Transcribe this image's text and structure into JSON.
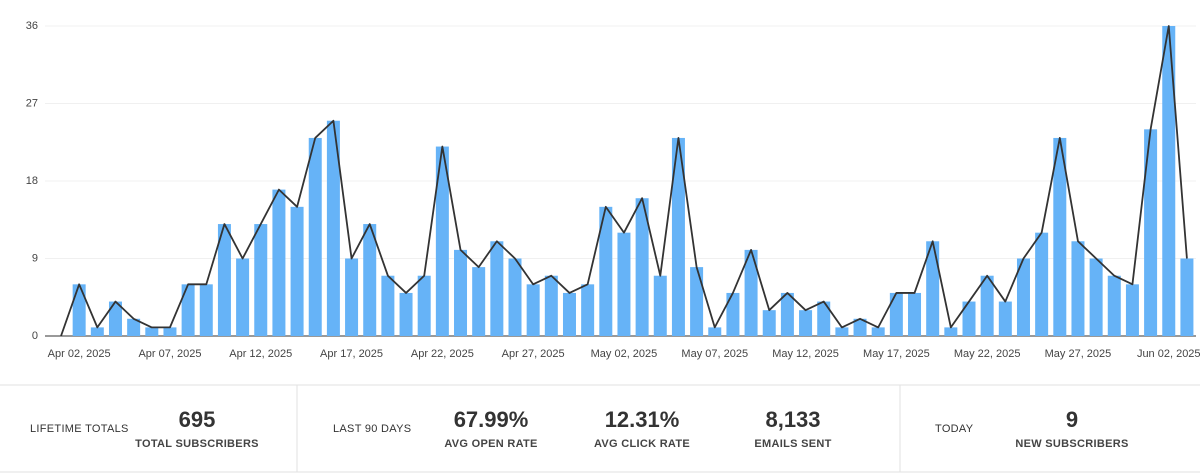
{
  "chart_data": {
    "type": "bar",
    "categories": [
      null,
      "Apr 02, 2025",
      null,
      null,
      null,
      null,
      "Apr 07, 2025",
      null,
      null,
      null,
      null,
      "Apr 12, 2025",
      null,
      null,
      null,
      null,
      "Apr 17, 2025",
      null,
      null,
      null,
      null,
      "Apr 22, 2025",
      null,
      null,
      null,
      null,
      "Apr 27, 2025",
      null,
      null,
      null,
      null,
      "May 02, 2025",
      null,
      null,
      null,
      null,
      "May 07, 2025",
      null,
      null,
      null,
      null,
      "May 12, 2025",
      null,
      null,
      null,
      null,
      "May 17, 2025",
      null,
      null,
      null,
      null,
      "May 22, 2025",
      null,
      null,
      null,
      null,
      "May 27, 2025",
      null,
      null,
      null,
      null,
      "Jun 02, 2025",
      null
    ],
    "values": [
      0,
      6,
      1,
      4,
      2,
      1,
      1,
      6,
      6,
      13,
      9,
      13,
      17,
      15,
      23,
      25,
      9,
      13,
      7,
      5,
      7,
      22,
      10,
      8,
      11,
      9,
      6,
      7,
      5,
      6,
      15,
      12,
      16,
      7,
      23,
      8,
      1,
      5,
      10,
      3,
      5,
      3,
      4,
      1,
      2,
      1,
      5,
      5,
      11,
      1,
      4,
      7,
      4,
      9,
      12,
      23,
      11,
      9,
      7,
      6,
      24,
      36,
      9
    ],
    "color": "#66b3f7",
    "line_color": "#333333",
    "ylim": [
      0,
      36
    ],
    "yticks": [
      0,
      9,
      18,
      27,
      36
    ],
    "grid": true
  },
  "stats": [
    {
      "heading": "LIFETIME TOTALS",
      "items": [
        {
          "value": "695",
          "label": "TOTAL SUBSCRIBERS"
        }
      ]
    },
    {
      "heading": "LAST 90 DAYS",
      "items": [
        {
          "value": "67.99%",
          "label": "AVG OPEN RATE"
        },
        {
          "value": "12.31%",
          "label": "AVG CLICK RATE"
        },
        {
          "value": "8,133",
          "label": "EMAILS SENT"
        }
      ]
    },
    {
      "heading": "TODAY",
      "items": [
        {
          "value": "9",
          "label": "NEW SUBSCRIBERS"
        }
      ]
    }
  ]
}
